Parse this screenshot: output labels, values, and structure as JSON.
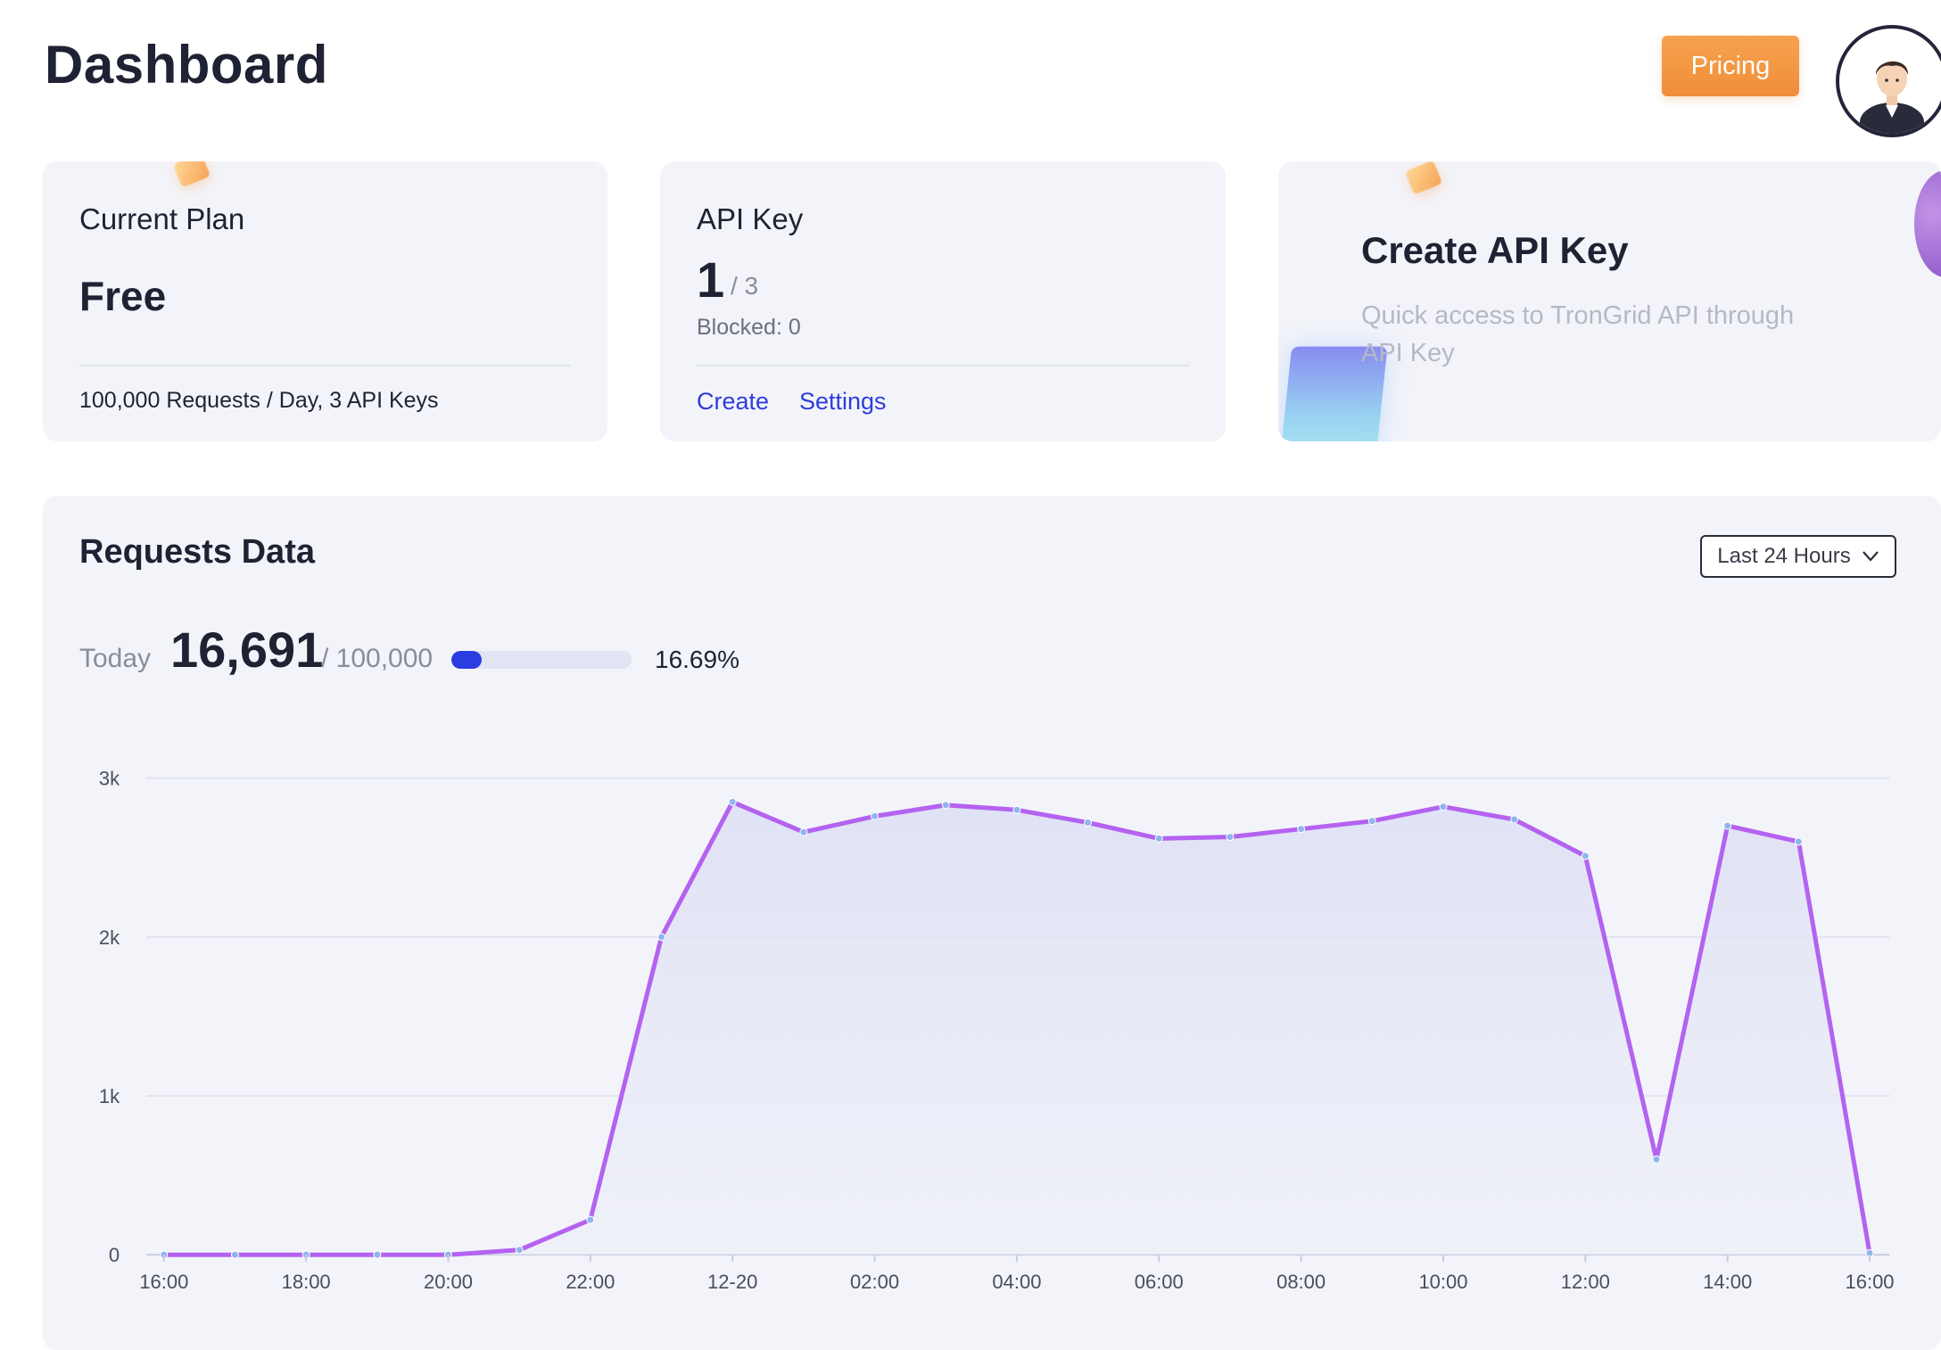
{
  "header": {
    "title": "Dashboard",
    "pricing_label": "Pricing"
  },
  "plan_card": {
    "title": "Current Plan",
    "value": "Free",
    "description": "100,000 Requests / Day, 3 API Keys"
  },
  "api_card": {
    "title": "API Key",
    "count": "1",
    "total": "/ 3",
    "blocked": "Blocked: 0",
    "create_label": "Create",
    "settings_label": "Settings"
  },
  "create_card": {
    "title": "Create API Key",
    "description": "Quick access to TronGrid API through API Key"
  },
  "requests": {
    "title": "Requests Data",
    "range_label": "Last 24 Hours",
    "today_label": "Today",
    "today_value": "16,691",
    "today_limit": "/ 100,000",
    "progress_percent": 16.69,
    "progress_text": "16.69%"
  },
  "colors": {
    "accent": "#2b3de0",
    "pricing": "#ef8e3a",
    "line": "#b462f0",
    "area": "#e6e8f6",
    "link": "#2d3ddb"
  },
  "chart_data": {
    "type": "area",
    "x": [
      "16:00",
      "17:00",
      "18:00",
      "19:00",
      "20:00",
      "21:00",
      "22:00",
      "23:00",
      "12-20",
      "01:00",
      "02:00",
      "03:00",
      "04:00",
      "05:00",
      "06:00",
      "07:00",
      "08:00",
      "09:00",
      "10:00",
      "11:00",
      "12:00",
      "13:00",
      "14:00",
      "15:00",
      "16:00"
    ],
    "x_tick_labels": [
      "16:00",
      "18:00",
      "20:00",
      "22:00",
      "12-20",
      "02:00",
      "04:00",
      "06:00",
      "08:00",
      "10:00",
      "12:00",
      "14:00",
      "16:00"
    ],
    "y_tick_labels": [
      "0",
      "1k",
      "2k",
      "3k"
    ],
    "values": [
      0,
      0,
      0,
      0,
      0,
      30,
      220,
      2000,
      2850,
      2660,
      2760,
      2830,
      2800,
      2720,
      2620,
      2630,
      2680,
      2730,
      2820,
      2740,
      2510,
      600,
      2700,
      2600,
      10
    ],
    "ylim": [
      0,
      3000
    ],
    "grid": true,
    "xlabel": "",
    "ylabel": ""
  }
}
